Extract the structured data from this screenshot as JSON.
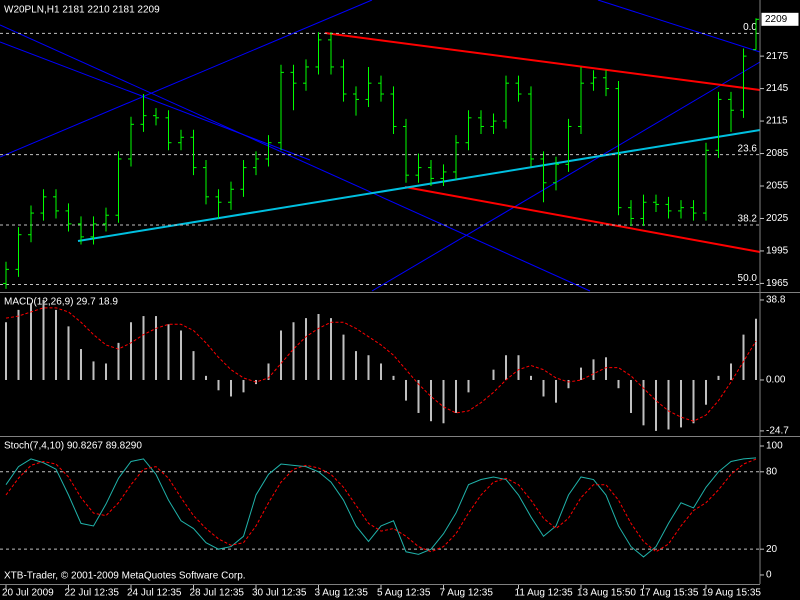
{
  "chart_data": [
    {
      "type": "ohlc",
      "title": "W20PLN,H1  2181 2210 2181 2209",
      "color": "#00ff00",
      "categories": [
        "20 Jul 2009",
        null,
        null,
        null,
        null,
        "22 Jul 12:35",
        null,
        null,
        null,
        null,
        "24 Jul 12:35",
        null,
        null,
        null,
        null,
        "28 Jul 12:35",
        null,
        null,
        null,
        null,
        "30 Jul 12:35",
        null,
        null,
        null,
        null,
        "3 Aug 12:35",
        null,
        null,
        null,
        null,
        "5 Aug 12:35",
        null,
        null,
        null,
        null,
        "7 Aug 12:35",
        null,
        null,
        null,
        null,
        null,
        "11 Aug 12:35",
        null,
        null,
        null,
        null,
        "13 Aug 15:50",
        null,
        null,
        null,
        null,
        "17 Aug 15:35",
        null,
        null,
        null,
        null,
        "19 Aug 15:35",
        null,
        null,
        null,
        null
      ],
      "open": [
        1965,
        1978,
        2010,
        2030,
        2045,
        2032,
        2020,
        2008,
        2020,
        2028,
        2080,
        2112,
        2120,
        2118,
        2095,
        2100,
        2072,
        2045,
        2040,
        2052,
        2072,
        2080,
        2095,
        2160,
        2150,
        2165,
        2190,
        2165,
        2140,
        2135,
        2150,
        2140,
        2110,
        2065,
        2072,
        2062,
        2068,
        2095,
        2118,
        2110,
        2115,
        2150,
        2140,
        2080,
        2058,
        2075,
        2110,
        2150,
        2155,
        2145,
        2035,
        2025,
        2040,
        2038,
        2032,
        2035,
        2030,
        2088,
        2135,
        2125,
        2181
      ],
      "high": [
        1985,
        2017,
        2037,
        2052,
        2052,
        2039,
        2027,
        2027,
        2035,
        2087,
        2119,
        2140,
        2127,
        2125,
        2107,
        2107,
        2079,
        2052,
        2059,
        2079,
        2087,
        2102,
        2167,
        2167,
        2172,
        2197,
        2197,
        2172,
        2147,
        2165,
        2157,
        2147,
        2117,
        2085,
        2079,
        2075,
        2102,
        2125,
        2125,
        2122,
        2157,
        2157,
        2147,
        2087,
        2082,
        2117,
        2165,
        2162,
        2162,
        2152,
        2042,
        2047,
        2047,
        2045,
        2042,
        2042,
        2095,
        2142,
        2142,
        2182,
        2210
      ],
      "low": [
        1960,
        1971,
        2003,
        2023,
        2025,
        2013,
        2001,
        2001,
        2013,
        2021,
        2073,
        2105,
        2111,
        2088,
        2088,
        2065,
        2038,
        2025,
        2033,
        2045,
        2065,
        2073,
        2088,
        2125,
        2143,
        2158,
        2158,
        2133,
        2120,
        2128,
        2133,
        2103,
        2058,
        2058,
        2055,
        2055,
        2061,
        2088,
        2103,
        2103,
        2108,
        2133,
        2073,
        2040,
        2051,
        2068,
        2103,
        2143,
        2138,
        2028,
        2018,
        2018,
        2031,
        2025,
        2025,
        2023,
        2023,
        2081,
        2105,
        2118,
        2181
      ],
      "close": [
        1978,
        2010,
        2030,
        2045,
        2032,
        2020,
        2008,
        2020,
        2028,
        2080,
        2112,
        2120,
        2118,
        2095,
        2100,
        2072,
        2045,
        2040,
        2052,
        2072,
        2080,
        2095,
        2160,
        2150,
        2165,
        2190,
        2165,
        2140,
        2135,
        2150,
        2140,
        2110,
        2065,
        2072,
        2062,
        2068,
        2095,
        2118,
        2110,
        2115,
        2150,
        2140,
        2080,
        2058,
        2075,
        2110,
        2150,
        2155,
        2145,
        2035,
        2025,
        2040,
        2038,
        2032,
        2035,
        2030,
        2088,
        2135,
        2125,
        2175,
        2209
      ],
      "ylim": [
        1958,
        2225
      ],
      "yticks": [
        2175,
        2145,
        2115,
        2085,
        2055,
        2025,
        1995,
        1965
      ],
      "levels": [
        {
          "value": 2196,
          "label": "0.0"
        },
        {
          "value": 2084,
          "label": "23.6"
        },
        {
          "value": 2019,
          "label": "38.2"
        },
        {
          "value": 1964,
          "label": "50.0"
        }
      ]
    },
    {
      "type": "indicator",
      "title": "MACD(12,26,9) 29.7 18.9",
      "series": [
        {
          "type": "bar",
          "color": "#c0c0c0",
          "values": [
            28,
            34,
            37,
            38.8,
            34,
            26,
            15,
            9,
            8,
            18,
            28,
            31,
            31,
            27,
            24,
            14,
            2,
            -5,
            -8,
            -6,
            -2,
            8,
            24,
            28,
            30,
            32,
            30,
            22,
            14,
            12,
            8,
            2,
            -10,
            -16,
            -20,
            -21,
            -16,
            -6,
            0,
            5,
            12,
            12,
            2,
            -8,
            -11,
            -4,
            6,
            10,
            11,
            -4,
            -16,
            -22,
            -24.7,
            -24,
            -23,
            -21,
            -12,
            2,
            8,
            22,
            29.7
          ]
        },
        {
          "type": "line",
          "dash": true,
          "color": "#ff0000",
          "values": [
            30,
            31,
            33,
            35,
            35,
            33,
            28,
            22,
            17,
            15,
            18,
            22,
            25,
            27,
            27,
            24,
            18,
            11,
            5,
            1,
            -1,
            1,
            8,
            15,
            21,
            25,
            28,
            28,
            25,
            21,
            17,
            12,
            5,
            -2,
            -8,
            -13,
            -16,
            -15,
            -11,
            -6,
            0,
            5,
            7,
            5,
            1,
            -1,
            0,
            3,
            6,
            6,
            2,
            -4,
            -10,
            -15,
            -18,
            -20,
            -17,
            -10,
            -1,
            9,
            18.9
          ]
        }
      ],
      "ylim": [
        -26.2,
        41.7
      ],
      "yticks": [
        38.8,
        {
          "value": 0,
          "label": "0.00"
        },
        -24.7
      ]
    },
    {
      "type": "indicator",
      "title": "Stoch(7,4,10) 90.8267 89.8290",
      "annotation": "XTB-Trader, © 2001-2009 MetaQuotes Software Corp.",
      "series": [
        {
          "type": "line",
          "color": "#20b2aa",
          "values": [
            70,
            84,
            90,
            87,
            82,
            62,
            40,
            38,
            55,
            75,
            88,
            90,
            78,
            58,
            42,
            36,
            25,
            20,
            22,
            30,
            62,
            78,
            86,
            85,
            84,
            80,
            72,
            58,
            38,
            26,
            38,
            42,
            18,
            16,
            20,
            32,
            48,
            70,
            74,
            76,
            74,
            62,
            45,
            30,
            38,
            62,
            76,
            74,
            62,
            38,
            22,
            14,
            22,
            40,
            56,
            52,
            68,
            80,
            88,
            90,
            90.8267
          ]
        },
        {
          "type": "line",
          "dash": true,
          "color": "#ff0000",
          "values": [
            62,
            75,
            85,
            88,
            86,
            76,
            60,
            48,
            46,
            56,
            70,
            82,
            84,
            75,
            60,
            46,
            36,
            28,
            23,
            25,
            38,
            56,
            72,
            82,
            85,
            83,
            78,
            68,
            54,
            40,
            34,
            36,
            30,
            22,
            18,
            22,
            32,
            48,
            62,
            72,
            75,
            70,
            58,
            44,
            36,
            44,
            60,
            70,
            70,
            58,
            40,
            26,
            18,
            24,
            38,
            50,
            56,
            66,
            78,
            86,
            89.829
          ]
        }
      ],
      "ylim": [
        -7,
        106.2
      ],
      "yticks": [
        100,
        80,
        20,
        0
      ],
      "levels": [
        80,
        20
      ]
    }
  ]
}
